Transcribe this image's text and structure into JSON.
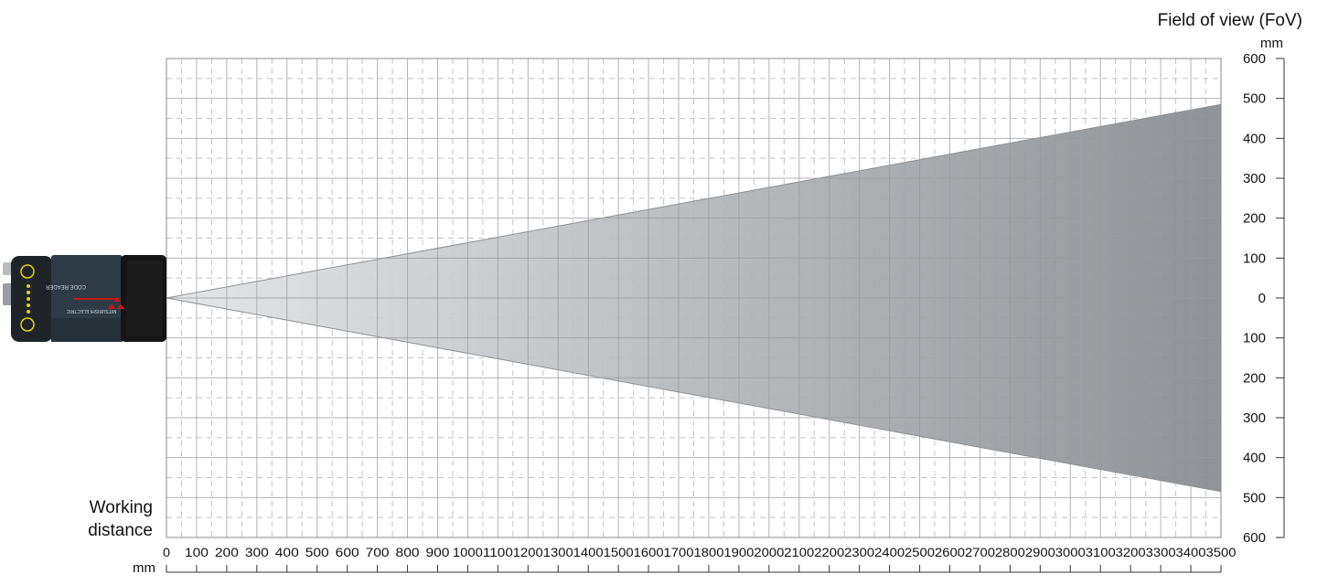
{
  "chart_data": {
    "type": "area",
    "title": "",
    "y_axis_title": "Field of view (FoV)",
    "y_unit": "mm",
    "x_axis_title": [
      "Working",
      "distance"
    ],
    "x_unit": "mm",
    "xlim": [
      0,
      3500
    ],
    "ylim": [
      -600,
      600
    ],
    "x_ticks": [
      "0",
      "100",
      "200",
      "300",
      "400",
      "500",
      "600",
      "700",
      "800",
      "900",
      "1000",
      "1100",
      "1200",
      "1300",
      "1400",
      "1500",
      "1600",
      "1700",
      "1800",
      "1900",
      "2000",
      "2100",
      "2200",
      "2300",
      "2400",
      "2500",
      "2600",
      "2700",
      "2800",
      "2900",
      "3000",
      "3100",
      "3200",
      "3300",
      "3400",
      "3500"
    ],
    "y_ticks": [
      {
        "value": 600,
        "label": "600"
      },
      {
        "value": 500,
        "label": "500"
      },
      {
        "value": 400,
        "label": "400"
      },
      {
        "value": 300,
        "label": "300"
      },
      {
        "value": 200,
        "label": "200"
      },
      {
        "value": 100,
        "label": "100"
      },
      {
        "value": 0,
        "label": "0"
      },
      {
        "value": -100,
        "label": "100"
      },
      {
        "value": -200,
        "label": "200"
      },
      {
        "value": -300,
        "label": "300"
      },
      {
        "value": -400,
        "label": "400"
      },
      {
        "value": -500,
        "label": "500"
      },
      {
        "value": -600,
        "label": "600"
      }
    ],
    "fov_cone": {
      "x": [
        0,
        3500
      ],
      "upper": [
        0,
        485
      ],
      "lower": [
        0,
        -485
      ]
    },
    "grid": true,
    "minor_grid": true,
    "colors": {
      "cone_start": "#e2e4e6",
      "cone_end": "#868a8e",
      "grid_major": "#9a9a9a",
      "grid_minor": "#c4c4c4",
      "device_body": "#2f3b45",
      "device_lens": "#141414",
      "accent_red": "#c4161c",
      "accent_yellow": "#e8d400"
    }
  },
  "device": {
    "brand": "MITSUBISHI ELECTRIC",
    "product": "CODE READER"
  }
}
